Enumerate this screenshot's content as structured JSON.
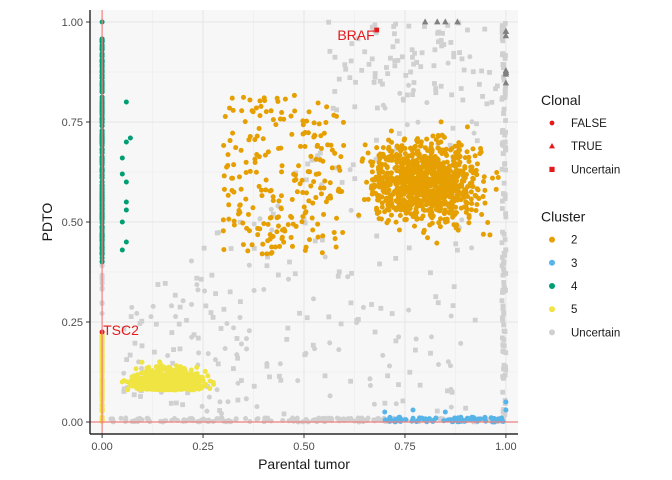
{
  "chart_data": {
    "type": "scatter",
    "title": "",
    "xlabel": "Parental tumor",
    "ylabel": "PDTO",
    "xlim": [
      -0.03,
      1.03
    ],
    "ylim": [
      -0.03,
      1.03
    ],
    "x_ticks": [
      {
        "value": 0,
        "label": "0.00"
      },
      {
        "value": 0.25,
        "label": "0.25"
      },
      {
        "value": 0.5,
        "label": "0.50"
      },
      {
        "value": 0.75,
        "label": "0.75"
      },
      {
        "value": 1,
        "label": "1.00"
      }
    ],
    "y_ticks": [
      {
        "value": 0,
        "label": "0.00"
      },
      {
        "value": 0.25,
        "label": "0.25"
      },
      {
        "value": 0.5,
        "label": "0.50"
      },
      {
        "value": 0.75,
        "label": "0.75"
      },
      {
        "value": 1,
        "label": "1.00"
      }
    ],
    "grid": true,
    "reference_lines": {
      "x": 0,
      "y": 0,
      "color": "#f08080"
    },
    "legend_position": "right",
    "legends": [
      {
        "title": "Clonal",
        "entries": [
          {
            "label": "FALSE",
            "shape": "circle",
            "color": "#e41a1c"
          },
          {
            "label": "TRUE",
            "shape": "triangle",
            "color": "#e41a1c"
          },
          {
            "label": "Uncertain",
            "shape": "square",
            "color": "#e41a1c"
          }
        ]
      },
      {
        "title": "Cluster",
        "entries": [
          {
            "label": "2",
            "color": "#E69F00"
          },
          {
            "label": "3",
            "color": "#56B4E9"
          },
          {
            "label": "4",
            "color": "#009E73"
          },
          {
            "label": "5",
            "color": "#F0E442"
          },
          {
            "label": "Uncertain",
            "color": "#d0d0d0"
          }
        ]
      }
    ],
    "series": [
      {
        "name": "2",
        "color": "#E69F00",
        "shape": "circle",
        "distribution": "dense cloud, x 0.30-1.00, y 0.35-0.88, centred near (0.82, 0.60)",
        "approx_points": 1200
      },
      {
        "name": "3",
        "color": "#56B4E9",
        "shape": "circle",
        "distribution": "along y = 0, x 0.70-1.00; a few near x = 1.00 with y up to 0.05",
        "approx_points": 90
      },
      {
        "name": "4",
        "color": "#009E73",
        "shape": "circle",
        "distribution": "along x = 0, y 0.40-0.96; a few at x 0.04-0.08",
        "approx_points": 230
      },
      {
        "name": "5",
        "color": "#F0E442",
        "shape": "circle",
        "distribution": "dense cloud, x 0.02-0.38, y 0.00-0.22, plus along x = 0 with y 0-0.22",
        "approx_points": 760
      },
      {
        "name": "Uncertain",
        "color": "#d0d0d0",
        "shape": "mixed",
        "distribution": "scattered across the panel, along y = 0, along x = 1.00, and along x = 0",
        "approx_points": 720
      }
    ],
    "annotations": [
      {
        "text": "BRAF",
        "x": 0.68,
        "y": 0.98,
        "color": "#e41a1c",
        "shape": "square"
      },
      {
        "text": "TSC2",
        "x": 0.0,
        "y": 0.225,
        "color": "#e41a1c",
        "shape": "circle"
      }
    ]
  }
}
